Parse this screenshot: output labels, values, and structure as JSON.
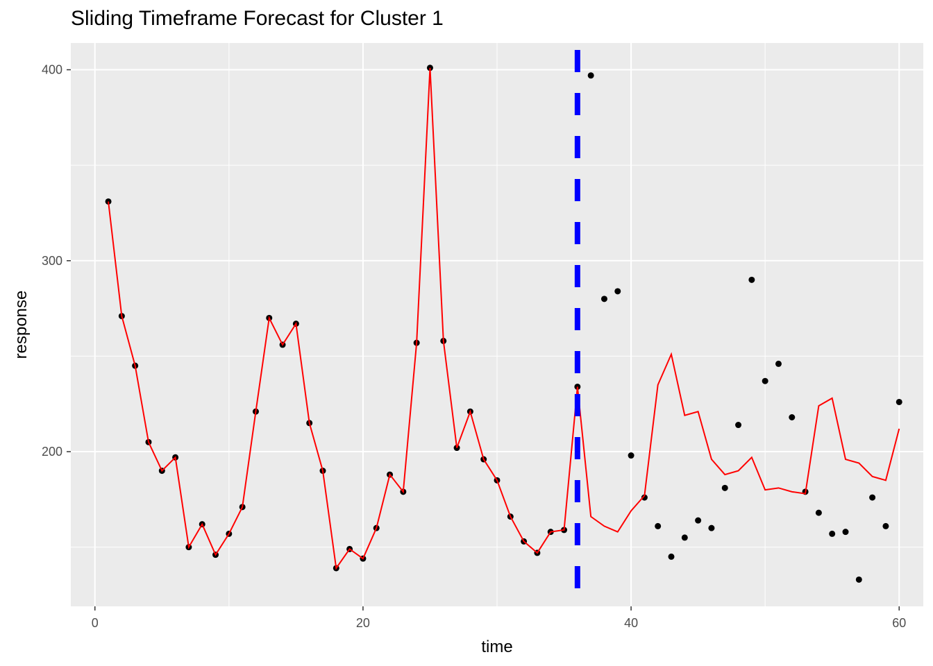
{
  "chart_data": {
    "type": "line",
    "title": "Sliding Timeframe Forecast for Cluster 1",
    "xlabel": "time",
    "ylabel": "response",
    "xlim": [
      -1.8,
      61.8
    ],
    "ylim": [
      119,
      414
    ],
    "x_ticks": [
      0,
      20,
      40,
      60
    ],
    "y_ticks": [
      200,
      300,
      400
    ],
    "x_minor": [
      10,
      30,
      50
    ],
    "y_minor": [
      150,
      250,
      350
    ],
    "grid": true,
    "panel_color": "#ebebeb",
    "cutoff_x": 36,
    "cutoff_color": "#0000ff",
    "series": [
      {
        "kind": "points",
        "color": "#000000",
        "x": [
          1,
          2,
          3,
          4,
          5,
          6,
          7,
          8,
          9,
          10,
          11,
          12,
          13,
          14,
          15,
          16,
          17,
          18,
          19,
          20,
          21,
          22,
          23,
          24,
          25,
          26,
          27,
          28,
          29,
          30,
          31,
          32,
          33,
          34,
          35,
          36,
          37,
          38,
          39,
          40,
          41,
          42,
          43,
          44,
          45,
          46,
          47,
          48,
          49,
          50,
          51,
          52,
          53,
          54,
          55,
          56,
          57,
          58,
          59,
          60
        ],
        "y": [
          331,
          271,
          245,
          205,
          190,
          197,
          150,
          162,
          146,
          157,
          171,
          221,
          270,
          256,
          267,
          215,
          190,
          139,
          149,
          144,
          160,
          188,
          179,
          257,
          401,
          258,
          202,
          221,
          196,
          185,
          166,
          153,
          147,
          158,
          159,
          234,
          397,
          280,
          284,
          198,
          176,
          161,
          145,
          155,
          164,
          160,
          181,
          214,
          290,
          237,
          246,
          218,
          179,
          168,
          157,
          158,
          133,
          176,
          161,
          226
        ]
      },
      {
        "kind": "line",
        "color": "#ff0000",
        "x": [
          1,
          2,
          3,
          4,
          5,
          6,
          7,
          8,
          9,
          10,
          11,
          12,
          13,
          14,
          15,
          16,
          17,
          18,
          19,
          20,
          21,
          22,
          23,
          24,
          25,
          26,
          27,
          28,
          29,
          30,
          31,
          32,
          33,
          34,
          35,
          36,
          37,
          38,
          39,
          40,
          41,
          42,
          43,
          44,
          45,
          46,
          47,
          48,
          49,
          50,
          51,
          52,
          53,
          54,
          55,
          56,
          57,
          58,
          59,
          60
        ],
        "y": [
          331,
          271,
          245,
          205,
          190,
          197,
          150,
          162,
          146,
          157,
          171,
          221,
          270,
          256,
          267,
          215,
          190,
          139,
          149,
          144,
          160,
          188,
          179,
          257,
          401,
          258,
          202,
          221,
          196,
          185,
          166,
          153,
          147,
          158,
          159,
          234,
          166,
          161,
          158,
          169,
          177,
          235,
          251,
          219,
          221,
          196,
          188,
          190,
          197,
          180,
          181,
          179,
          178,
          224,
          228,
          196,
          194,
          187,
          185,
          212
        ]
      }
    ]
  }
}
